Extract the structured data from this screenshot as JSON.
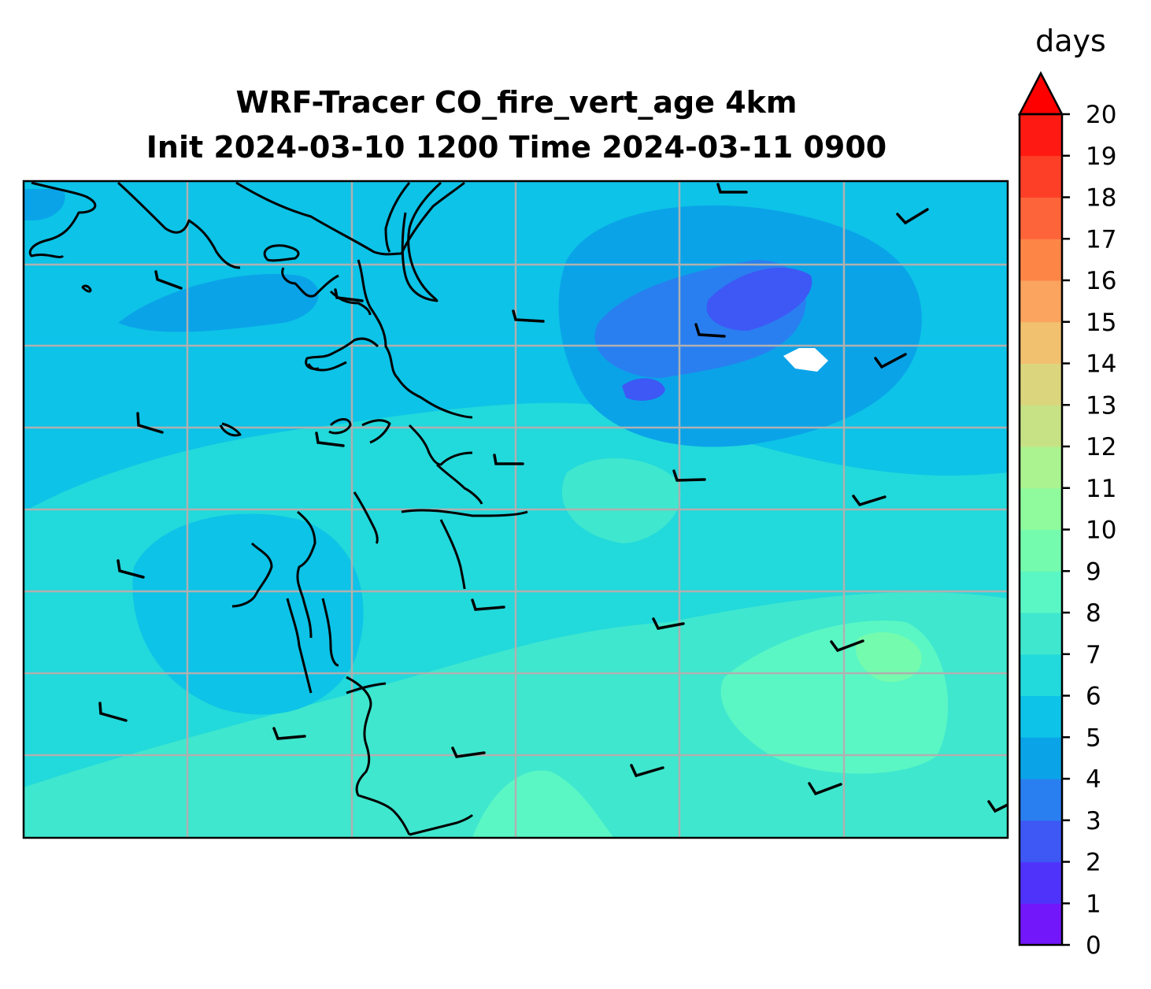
{
  "title_line1": "WRF-Tracer CO_fire_vert_age 4km",
  "title_line2": "Init 2024-03-10 1200 Time 2024-03-11 0900",
  "colorbar": {
    "unit": "days",
    "min": 0,
    "max": 20,
    "extend": "max",
    "tick_labels": [
      "0",
      "1",
      "2",
      "3",
      "4",
      "5",
      "6",
      "7",
      "8",
      "9",
      "10",
      "11",
      "12",
      "13",
      "14",
      "15",
      "16",
      "17",
      "18",
      "19",
      "20"
    ],
    "colors": [
      "#7317fb",
      "#5033fb",
      "#3d58f5",
      "#297ff0",
      "#0aa3e8",
      "#0dc3e7",
      "#22d9db",
      "#3fe7ce",
      "#5af7c4",
      "#75fbae",
      "#8ffb9d",
      "#abf391",
      "#c7e285",
      "#dbd67e",
      "#f1c170",
      "#fba45f",
      "#fd8647",
      "#fe643a",
      "#fe3f28",
      "#fe1a12"
    ],
    "extend_color": "#ff0000"
  },
  "map": {
    "background_field_days": 6,
    "gridlines": true
  }
}
